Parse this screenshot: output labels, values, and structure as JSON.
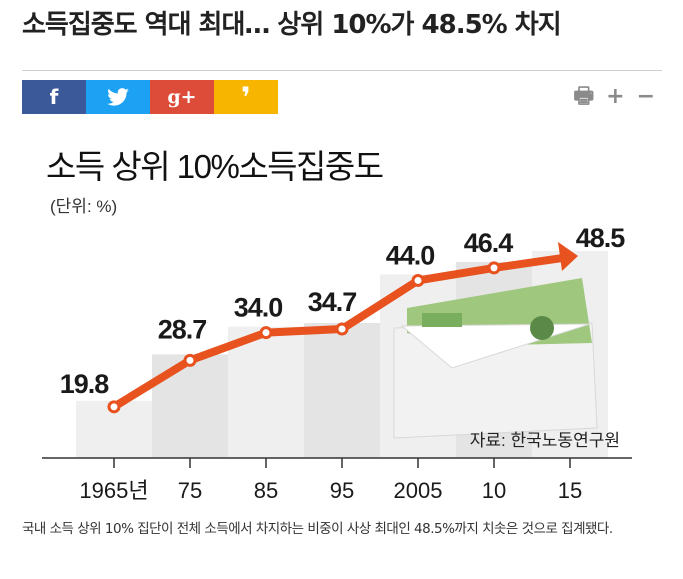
{
  "article": {
    "headline": "소득집중도 역대 최대… 상위 10%가 48.5% 차지",
    "caption": "국내 소득 상위 10% 집단이 전체 소득에서 차지하는 비중이 사상 최대인 48.5%까지 치솟은 것으로 집계됐다."
  },
  "share": [
    {
      "label": "f",
      "color": "#3b5998",
      "icon": "facebook-icon"
    },
    {
      "label": "🐦",
      "color": "#1da1f2",
      "icon": "twitter-icon"
    },
    {
      "label": "g+",
      "color": "#dd4b39",
      "icon": "google-plus-icon"
    },
    {
      "label": "❜",
      "color": "#f7b500",
      "icon": "kakao-story-icon"
    }
  ],
  "tools": {
    "print": "🖶",
    "zoom_in": "+",
    "zoom_out": "−"
  },
  "chart_data": {
    "type": "line",
    "title": "소득 상위 10%소득집중도",
    "unit": "(단위: %)",
    "source": "자료: 한국노동연구원",
    "categories": [
      "1965년",
      "75",
      "85",
      "95",
      "2005",
      "10",
      "15"
    ],
    "values": [
      19.8,
      28.7,
      34.0,
      34.7,
      44.0,
      46.4,
      48.5
    ],
    "value_labels": [
      "19.8",
      "28.7",
      "34.0",
      "34.7",
      "44.0",
      "46.4",
      "48.5"
    ],
    "ylim": [
      10,
      55
    ],
    "line_color": "#e8521e",
    "bar_color": "#ebebeb",
    "grid": false
  }
}
